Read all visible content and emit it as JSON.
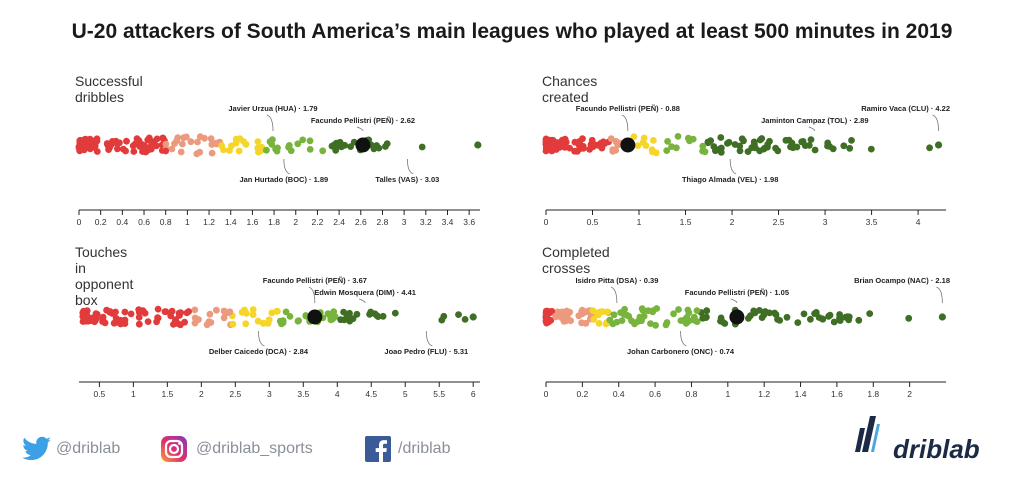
{
  "title": "U-20 attackers of South America’s main leagues who played at least 500 minutes in 2019",
  "colors": {
    "red": "#e23b3b",
    "salmon": "#eb9a7e",
    "yellow": "#f6d52b",
    "lightgreen": "#78b43d",
    "darkgreen": "#3f6e25",
    "highlight": "#111111"
  },
  "chart_data": [
    {
      "type": "scatter",
      "title": "Successful dribbles",
      "xlim": [
        0,
        3.7
      ],
      "ticks": [
        "0",
        "0.2",
        "0.4",
        "0.6",
        "0.8",
        "1",
        "1.2",
        "1.4",
        "1.6",
        "1.8",
        "2",
        "2.2",
        "2.4",
        "2.6",
        "2.8",
        "3",
        "3.2",
        "3.4",
        "3.6"
      ],
      "tick_values": [
        0,
        0.2,
        0.4,
        0.6,
        0.8,
        1,
        1.2,
        1.4,
        1.6,
        1.8,
        2,
        2.2,
        2.4,
        2.6,
        2.8,
        3,
        3.2,
        3.4,
        3.6
      ],
      "bands": [
        0.8,
        1.3,
        1.72,
        2.3
      ],
      "range": [
        0.0,
        3.68
      ],
      "highlight": 2.62,
      "annotations": [
        {
          "text": "Javier Urzua (HUA) · 1.79",
          "value": 1.79,
          "position": "above"
        },
        {
          "text": "Facundo Pellistri (PEÑ) · 2.62",
          "value": 2.62,
          "position": "above"
        },
        {
          "text": "Jan Hurtado (BOC) · 1.89",
          "value": 1.89,
          "position": "below"
        },
        {
          "text": "Talles (VAS) · 3.03",
          "value": 3.03,
          "position": "below"
        }
      ]
    },
    {
      "type": "scatter",
      "title": "Chances created",
      "xlim": [
        0,
        4.3
      ],
      "ticks": [
        "0",
        "0.5",
        "1",
        "1.5",
        "2",
        "2.5",
        "3",
        "3.5",
        "4"
      ],
      "tick_values": [
        0,
        0.5,
        1,
        1.5,
        2,
        2.5,
        3,
        3.5,
        4
      ],
      "bands": [
        0.68,
        0.92,
        1.2,
        1.72
      ],
      "range": [
        0.0,
        4.22
      ],
      "highlight": 0.88,
      "annotations": [
        {
          "text": "Facundo Pellistri (PEÑ) · 0.88",
          "value": 0.88,
          "position": "above"
        },
        {
          "text": "Jaminton Campaz (TOL) · 2.89",
          "value": 2.89,
          "position": "above"
        },
        {
          "text": "Ramiro Vaca (CLU) · 4.22",
          "value": 4.22,
          "position": "above"
        },
        {
          "text": "Thiago Almada (VEL) · 1.98",
          "value": 1.98,
          "position": "below"
        }
      ]
    },
    {
      "type": "scatter",
      "title": "Touches in opponent box",
      "xlim": [
        0.2,
        6.1
      ],
      "ticks": [
        "0.5",
        "1",
        "1.5",
        "2",
        "2.5",
        "3",
        "3.5",
        "4",
        "4.5",
        "5",
        "5.5",
        "6"
      ],
      "tick_values": [
        0.5,
        1,
        1.5,
        2,
        2.5,
        3,
        3.5,
        4,
        4.5,
        5,
        5.5,
        6
      ],
      "bands": [
        1.85,
        2.45,
        3.15,
        4.0
      ],
      "range": [
        0.25,
        6.0
      ],
      "highlight": 3.67,
      "annotations": [
        {
          "text": "Facundo Pellistri (PEÑ) · 3.67",
          "value": 3.67,
          "position": "above"
        },
        {
          "text": "Edwin Mosquera (DIM) · 4.41",
          "value": 4.41,
          "position": "above"
        },
        {
          "text": "Delber Caicedo (DCA) · 2.84",
          "value": 2.84,
          "position": "below"
        },
        {
          "text": "Joao Pedro (FLU) · 5.31",
          "value": 5.31,
          "position": "below"
        }
      ]
    },
    {
      "type": "scatter",
      "title": "Completed crosses",
      "xlim": [
        0,
        2.2
      ],
      "ticks": [
        "0",
        "0.2",
        "0.4",
        "0.6",
        "0.8",
        "1",
        "1.2",
        "1.4",
        "1.6",
        "1.8",
        "2"
      ],
      "tick_values": [
        0,
        0.2,
        0.4,
        0.6,
        0.8,
        1,
        1.2,
        1.4,
        1.6,
        1.8,
        2
      ],
      "bands": [
        0.05,
        0.25,
        0.34,
        0.85
      ],
      "range": [
        0.0,
        2.18
      ],
      "highlight": 1.05,
      "annotations": [
        {
          "text": "Isidro Pitta (DSA) · 0.39",
          "value": 0.39,
          "position": "above"
        },
        {
          "text": "Facundo Pellistri (PEÑ) · 1.05",
          "value": 1.05,
          "position": "above"
        },
        {
          "text": "Brian Ocampo (NAC) · 2.18",
          "value": 2.18,
          "position": "above"
        },
        {
          "text": "Johan Carbonero (ONC) · 0.74",
          "value": 0.74,
          "position": "below"
        }
      ]
    }
  ],
  "footer": {
    "twitter": "@driblab",
    "instagram": "@driblab_sports",
    "facebook": "/driblab",
    "brand": "driblab"
  }
}
